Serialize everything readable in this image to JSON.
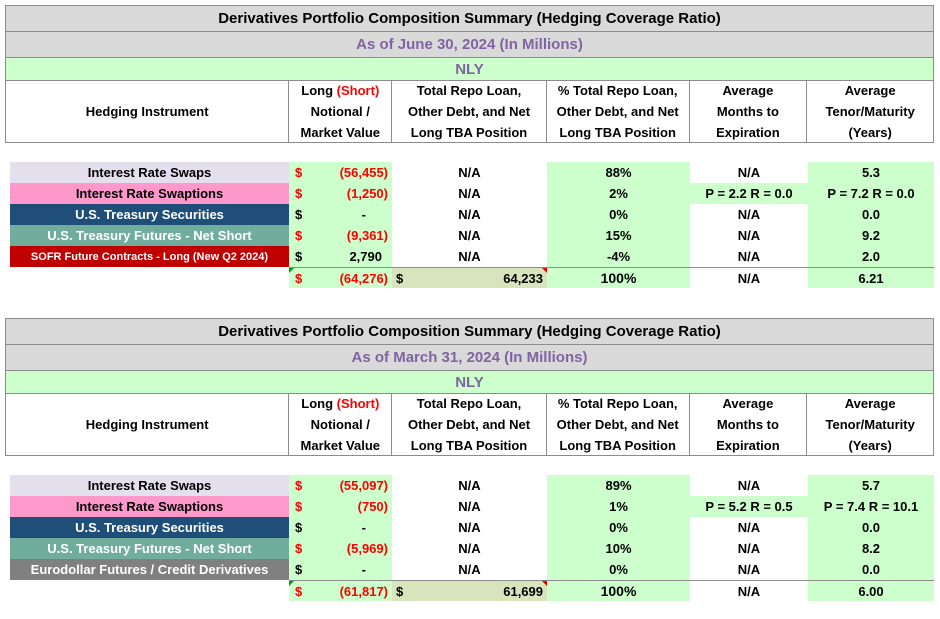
{
  "header": {
    "long_prefix": "Long ",
    "short_word": "(Short)",
    "notional_line2": "Notional /",
    "notional_line3": "Market Value",
    "instrument": "Hedging Instrument",
    "repo_line1": "Total Repo Loan,",
    "repo_line2": "Other Debt, and Net",
    "repo_line3": "Long  TBA Position",
    "pct_line1": "% Total Repo Loan,",
    "pct_line2": "Other Debt, and Net",
    "pct_line3": "Long TBA Position",
    "months_line1": "Average",
    "months_line2": "Months to",
    "months_line3": "Expiration",
    "tenor_line1": "Average",
    "tenor_line2": "Tenor/Maturity",
    "tenor_line3": "(Years)"
  },
  "tables": [
    {
      "title": "Derivatives Portfolio Composition Summary (Hedging Coverage Ratio)",
      "as_of": "As of June 30, 2024 (In Millions)",
      "entity": "NLY",
      "rows": [
        {
          "instrument": "Interest Rate Swaps",
          "dollar": "$",
          "notional": "(56,455)",
          "repo": "N/A",
          "pct": "88%",
          "months": "N/A",
          "tenor": "5.3"
        },
        {
          "instrument": "Interest Rate Swaptions",
          "dollar": "$",
          "notional": "(1,250)",
          "repo": "N/A",
          "pct": "2%",
          "months": "P = 2.2   R = 0.0",
          "tenor": "P = 7.2  R = 0.0"
        },
        {
          "instrument": "U.S. Treasury Securities",
          "dollar": "$",
          "notional": "-",
          "repo": "N/A",
          "pct": "0%",
          "months": "N/A",
          "tenor": "0.0"
        },
        {
          "instrument": "U.S. Treasury Futures - Net Short",
          "dollar": "$",
          "notional": "(9,361)",
          "repo": "N/A",
          "pct": "15%",
          "months": "N/A",
          "tenor": "9.2"
        },
        {
          "instrument": "SOFR Future Contracts - Long (New Q2 2024)",
          "dollar": "$",
          "notional": "2,790",
          "repo": "N/A",
          "pct": "-4%",
          "months": "N/A",
          "tenor": "2.0"
        }
      ],
      "total": {
        "dollar": "$",
        "notional": "(64,276)",
        "repo_dollar": "$",
        "repo": "64,233",
        "pct": "100%",
        "months": "N/A",
        "tenor": "6.21"
      }
    },
    {
      "title": "Derivatives Portfolio Composition Summary (Hedging Coverage Ratio)",
      "as_of": "As of March 31, 2024 (In Millions)",
      "entity": "NLY",
      "rows": [
        {
          "instrument": "Interest Rate Swaps",
          "dollar": "$",
          "notional": "(55,097)",
          "repo": "N/A",
          "pct": "89%",
          "months": "N/A",
          "tenor": "5.7"
        },
        {
          "instrument": "Interest Rate Swaptions",
          "dollar": "$",
          "notional": "(750)",
          "repo": "N/A",
          "pct": "1%",
          "months": "P = 5.2   R = 0.5",
          "tenor": "P = 7.4  R = 10.1"
        },
        {
          "instrument": "U.S. Treasury Securities",
          "dollar": "$",
          "notional": "-",
          "repo": "N/A",
          "pct": "0%",
          "months": "N/A",
          "tenor": "0.0"
        },
        {
          "instrument": "U.S. Treasury Futures - Net Short",
          "dollar": "$",
          "notional": "(5,969)",
          "repo": "N/A",
          "pct": "10%",
          "months": "N/A",
          "tenor": "8.2"
        },
        {
          "instrument": "Eurodollar Futures / Credit Derivatives",
          "dollar": "$",
          "notional": "-",
          "repo": "N/A",
          "pct": "0%",
          "months": "N/A",
          "tenor": "0.0"
        }
      ],
      "total": {
        "dollar": "$",
        "notional": "(61,817)",
        "repo_dollar": "$",
        "repo": "61,699",
        "pct": "100%",
        "months": "N/A",
        "tenor": "6.00"
      }
    }
  ],
  "colors": {
    "title_bg": "#d9d9d9",
    "as_of_text": "#8064a2",
    "entity_bg": "#ccffcc",
    "swaps_bg": "#e4dfec",
    "swaptions_bg": "#ff99cc",
    "treasury_bg": "#1f4e79",
    "futures_bg": "#70ad9c",
    "sofr_bg": "#c00000",
    "eurodollar_bg": "#808080",
    "negative_text": "#ff0000"
  }
}
